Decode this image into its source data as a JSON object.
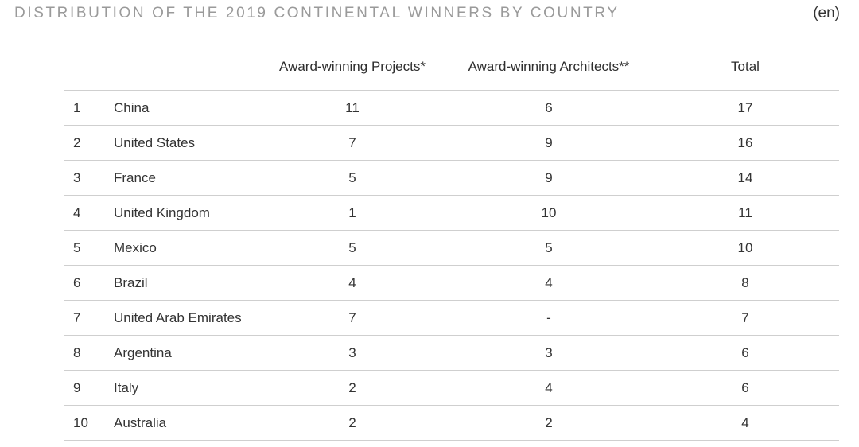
{
  "title": "DISTRIBUTION OF THE 2019 CONTINENTAL WINNERS BY COUNTRY",
  "language": "(en)",
  "columns": {
    "projects": "Award-winning Projects*",
    "architects": "Award-winning Architects**",
    "total": "Total"
  },
  "rows": [
    {
      "rank": "1",
      "country": "China",
      "projects": "11",
      "architects": "6",
      "total": "17"
    },
    {
      "rank": "2",
      "country": "United States",
      "projects": "7",
      "architects": "9",
      "total": "16"
    },
    {
      "rank": "3",
      "country": "France",
      "projects": "5",
      "architects": "9",
      "total": "14"
    },
    {
      "rank": "4",
      "country": "United Kingdom",
      "projects": "1",
      "architects": "10",
      "total": "11"
    },
    {
      "rank": "5",
      "country": "Mexico",
      "projects": "5",
      "architects": "5",
      "total": "10"
    },
    {
      "rank": "6",
      "country": "Brazil",
      "projects": "4",
      "architects": "4",
      "total": "8"
    },
    {
      "rank": "7",
      "country": "United Arab Emirates",
      "projects": "7",
      "architects": "-",
      "total": "7"
    },
    {
      "rank": "8",
      "country": "Argentina",
      "projects": "3",
      "architects": "3",
      "total": "6"
    },
    {
      "rank": "9",
      "country": "Italy",
      "projects": "2",
      "architects": "4",
      "total": "6"
    },
    {
      "rank": "10",
      "country": "Australia",
      "projects": "2",
      "architects": "2",
      "total": "4"
    }
  ]
}
